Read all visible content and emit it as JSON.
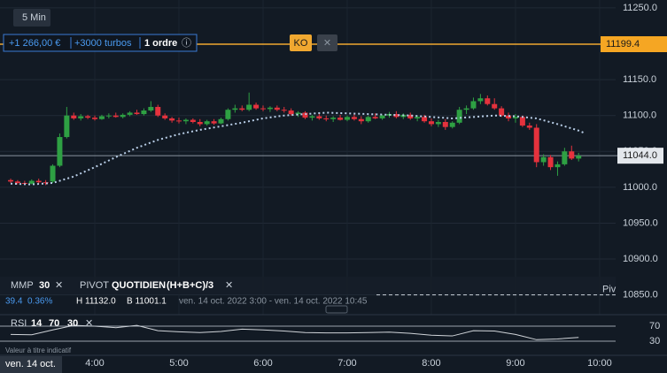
{
  "toolbar": {
    "interval": "5 Min"
  },
  "position": {
    "pnl": "+1 266,00 €",
    "size": "+3000 turbos",
    "orders": "1 ordre",
    "info": "ⓘ"
  },
  "ko": {
    "label": "KO",
    "close": "✕"
  },
  "indicators": {
    "mmp": "MMP",
    "mmp_period": "30",
    "mmp_close": "✕",
    "pivot": "PIVOT",
    "pivot_period": "QUOTIDIEN",
    "pivot_formula": "(H+B+C)/3",
    "pivot_close": "✕"
  },
  "info": {
    "change": "39.4",
    "change_pct": "0.36%",
    "high": "H 11132.0",
    "low": "B 11001.1",
    "range": "ven. 14 oct. 2022 3:00 - ven. 14 oct. 2022 10:45"
  },
  "date_label": "ven. 14 oct.",
  "chart_data": {
    "type": "candlestick",
    "up_color": "#2ea043",
    "down_color": "#e5323d",
    "x": [
      180,
      185,
      190,
      195,
      200,
      205,
      210,
      215,
      220,
      225,
      230,
      235,
      240,
      245,
      250,
      255,
      260,
      265,
      270,
      275,
      280,
      285,
      290,
      295,
      300,
      305,
      310,
      315,
      320,
      325,
      330,
      335,
      340,
      345,
      350,
      355,
      360,
      365,
      370,
      375,
      380,
      385,
      390,
      395,
      400,
      405,
      410,
      415,
      420,
      425,
      430,
      435,
      440,
      445,
      450,
      455,
      460,
      465,
      470,
      475,
      480,
      485,
      490,
      495,
      500,
      505,
      510,
      515,
      520,
      525,
      530,
      535,
      540,
      545,
      550,
      555,
      560,
      565,
      570,
      575,
      580,
      585
    ],
    "open": [
      11010,
      11008,
      11006,
      11005,
      11009,
      11007,
      11008,
      11030,
      11070,
      11100,
      11096,
      11099,
      11097,
      11095,
      11099,
      11100,
      11098,
      11101,
      11104,
      11102,
      11107,
      11112,
      11100,
      11096,
      11093,
      11092,
      11094,
      11091,
      11088,
      11092,
      11089,
      11095,
      11108,
      11110,
      11108,
      11115,
      11110,
      11109,
      11111,
      11108,
      11107,
      11102,
      11104,
      11097,
      11099,
      11096,
      11095,
      11097,
      11094,
      11098,
      11095,
      11092,
      11098,
      11096,
      11100,
      11102,
      11098,
      11101,
      11096,
      11098,
      11092,
      11088,
      11091,
      11084,
      11090,
      11108,
      11110,
      11120,
      11124,
      11116,
      11110,
      11100,
      11096,
      11098,
      11086,
      11083,
      11035,
      11042,
      11028,
      11032,
      11050,
      11040
    ],
    "high": [
      11012,
      11010,
      11009,
      11011,
      11012,
      11010,
      11032,
      11075,
      11112,
      11104,
      11102,
      11101,
      11100,
      11101,
      11103,
      11104,
      11103,
      11106,
      11108,
      11110,
      11120,
      11115,
      11103,
      11098,
      11097,
      11096,
      11096,
      11095,
      11094,
      11095,
      11097,
      11110,
      11115,
      11114,
      11132,
      11118,
      11114,
      11113,
      11114,
      11112,
      11110,
      11106,
      11106,
      11101,
      11103,
      11100,
      11099,
      11101,
      11100,
      11102,
      11099,
      11100,
      11103,
      11101,
      11105,
      11106,
      11103,
      11104,
      11100,
      11101,
      11096,
      11094,
      11095,
      11092,
      11112,
      11114,
      11125,
      11130,
      11128,
      11124,
      11113,
      11104,
      11102,
      11100,
      11090,
      11088,
      11046,
      11045,
      11036,
      11055,
      11058,
      11048
    ],
    "low": [
      11006,
      11004,
      11003,
      11004,
      11005,
      11003,
      11006,
      11028,
      11068,
      11094,
      11093,
      11095,
      11093,
      11094,
      11096,
      11097,
      11096,
      11099,
      11101,
      11100,
      11105,
      11098,
      11094,
      11090,
      11089,
      11088,
      11089,
      11085,
      11086,
      11087,
      11088,
      11093,
      11104,
      11106,
      11106,
      11108,
      11106,
      11105,
      11106,
      11104,
      11100,
      11098,
      11095,
      11093,
      11094,
      11092,
      11091,
      11093,
      11092,
      11093,
      11088,
      11090,
      11095,
      11094,
      11097,
      11096,
      11095,
      11094,
      11092,
      11090,
      11085,
      11084,
      11080,
      11082,
      11088,
      11102,
      11108,
      11116,
      11114,
      11108,
      11098,
      11092,
      11090,
      11084,
      11080,
      11028,
      11030,
      11024,
      11016,
      11030,
      11038,
      11036
    ],
    "close": [
      11008,
      11006,
      11005,
      11009,
      11007,
      11006,
      11030,
      11070,
      11100,
      11096,
      11099,
      11097,
      11095,
      11099,
      11100,
      11098,
      11101,
      11104,
      11102,
      11107,
      11112,
      11100,
      11096,
      11093,
      11092,
      11094,
      11091,
      11088,
      11092,
      11089,
      11095,
      11108,
      11110,
      11108,
      11115,
      11110,
      11109,
      11111,
      11108,
      11107,
      11102,
      11104,
      11097,
      11099,
      11096,
      11095,
      11097,
      11094,
      11098,
      11095,
      11092,
      11098,
      11096,
      11100,
      11102,
      11098,
      11101,
      11096,
      11098,
      11092,
      11088,
      11091,
      11084,
      11090,
      11108,
      11110,
      11120,
      11124,
      11116,
      11110,
      11100,
      11096,
      11098,
      11086,
      11083,
      11035,
      11042,
      11028,
      11032,
      11050,
      11040,
      11044
    ],
    "ma": {
      "color": "#b8cde6",
      "x": [
        180,
        195,
        210,
        225,
        240,
        255,
        270,
        285,
        300,
        315,
        330,
        345,
        360,
        375,
        390,
        405,
        420,
        435,
        450,
        465,
        480,
        495,
        510,
        525,
        540,
        555,
        570,
        585,
        590
      ],
      "values": [
        11005,
        11004,
        11006,
        11015,
        11028,
        11042,
        11055,
        11066,
        11074,
        11080,
        11085,
        11090,
        11096,
        11100,
        11102,
        11104,
        11103,
        11102,
        11101,
        11100,
        11098,
        11096,
        11098,
        11100,
        11099,
        11096,
        11088,
        11079,
        11075
      ]
    },
    "xlim": [
      172.4,
      611.4
    ],
    "ylim": [
      10836,
      11261
    ],
    "xticks": [
      {
        "value": 240,
        "label": "4:00"
      },
      {
        "value": 300,
        "label": "5:00"
      },
      {
        "value": 360,
        "label": "6:00"
      },
      {
        "value": 420,
        "label": "7:00"
      },
      {
        "value": 480,
        "label": "8:00"
      },
      {
        "value": 540,
        "label": "9:00"
      },
      {
        "value": 600,
        "label": "10:00"
      }
    ],
    "yticks": [
      {
        "value": 11250,
        "label": "11250.0"
      },
      {
        "value": 11150,
        "label": "11150.0"
      },
      {
        "value": 11100,
        "label": "11100.0"
      },
      {
        "value": 11050,
        "label": "11050.0"
      },
      {
        "value": 11000,
        "label": "11000.0"
      },
      {
        "value": 10950,
        "label": "10950.0"
      },
      {
        "value": 10900,
        "label": "10900.0"
      },
      {
        "value": 10850,
        "label": "10850.0"
      }
    ],
    "ko_level": {
      "value": 11199.4,
      "label": "11199.4"
    },
    "last_price": {
      "value": 11044.0,
      "label": "11044.0"
    },
    "pivot": {
      "value": 10850,
      "label": "Piv"
    },
    "grid": true
  },
  "rsi": {
    "name": "RSI",
    "period": "14",
    "close": "✕",
    "note": "Valeur à titre indicatif",
    "color": "#d0d4d9",
    "x": [
      180,
      195,
      210,
      225,
      240,
      255,
      270,
      285,
      300,
      315,
      330,
      345,
      360,
      375,
      390,
      405,
      420,
      435,
      450,
      465,
      480,
      495,
      510,
      525,
      540,
      555,
      570,
      585
    ],
    "values": [
      48,
      47,
      60,
      72,
      70,
      66,
      72,
      58,
      55,
      53,
      56,
      62,
      60,
      57,
      53,
      52,
      52,
      53,
      54,
      51,
      46,
      44,
      58,
      57,
      48,
      34,
      36,
      40
    ],
    "ylim": [
      15.9,
      98.2
    ],
    "yticks": [
      70,
      30
    ]
  }
}
